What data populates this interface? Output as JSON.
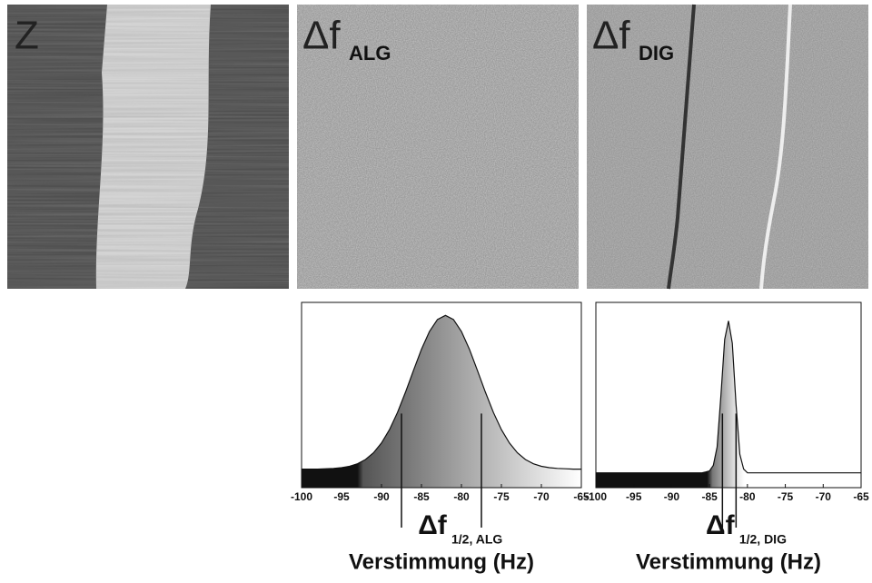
{
  "panels": [
    {
      "label": "Z"
    },
    {
      "label": "Δf",
      "subscript": "ALG"
    },
    {
      "label": "Δf",
      "subscript": "DIG"
    }
  ],
  "chart_data": [
    {
      "type": "area",
      "x": [
        -100,
        -99,
        -98,
        -97,
        -96,
        -95,
        -94,
        -93,
        -92,
        -91,
        -90,
        -89,
        -88,
        -87,
        -86,
        -85,
        -84,
        -83,
        -82,
        -81,
        -80,
        -79,
        -78,
        -77,
        -76,
        -75,
        -74,
        -73,
        -72,
        -71,
        -70,
        -69,
        -68,
        -67,
        -66,
        -65
      ],
      "values": [
        10,
        10,
        10,
        10.2,
        10.4,
        10.8,
        11.5,
        12.9,
        15.2,
        18.8,
        24.1,
        31.3,
        40.6,
        51.5,
        63.3,
        74.7,
        84.3,
        90.8,
        93,
        90.8,
        84.3,
        74.7,
        63.3,
        51.5,
        40.6,
        31.3,
        24.1,
        18.8,
        15.2,
        12.9,
        11.5,
        10.8,
        10.4,
        10.2,
        10,
        10
      ],
      "xlim": [
        -100,
        -65
      ],
      "ylim": [
        0,
        100
      ],
      "xticks": [
        -100,
        -95,
        -90,
        -85,
        -80,
        -75,
        -70,
        -65
      ],
      "markers": [
        -87.5,
        -77.5
      ],
      "annotation": {
        "text": "Δf",
        "subscript": "1/2, ALG"
      },
      "xlabel": "Verstimmung (Hz)"
    },
    {
      "type": "area",
      "x": [
        -100,
        -99.5,
        -99,
        -98.5,
        -98,
        -97.5,
        -97,
        -96.5,
        -96,
        -95.5,
        -95,
        -94.5,
        -94,
        -93.5,
        -93,
        -92.5,
        -92,
        -91.5,
        -91,
        -90.5,
        -90,
        -89.5,
        -89,
        -88.5,
        -88,
        -87.5,
        -87,
        -86.5,
        -86,
        -85.5,
        -85,
        -84.5,
        -84,
        -83.5,
        -83,
        -82.5,
        -82,
        -81.5,
        -81,
        -80.5,
        -80,
        -79.5,
        -79,
        -78.5,
        -78,
        -77.5,
        -77,
        -76.5,
        -76,
        -75.5,
        -75,
        -74.5,
        -74,
        -73.5,
        -73,
        -72.5,
        -72,
        -71.5,
        -71,
        -70.5,
        -70,
        -69.5,
        -69,
        -68.5,
        -68,
        -67.5,
        -67,
        -66.5,
        -66,
        -65.5,
        -65
      ],
      "values": [
        8,
        8,
        8,
        8,
        8,
        8,
        8,
        8,
        8,
        8,
        8,
        8,
        8,
        8,
        8,
        8,
        8,
        8,
        8,
        8,
        8,
        8,
        8,
        8,
        8,
        8,
        8,
        8,
        8,
        8.5,
        9,
        12,
        22,
        50,
        80,
        90,
        78,
        45,
        18,
        10,
        8,
        8,
        8,
        8,
        8,
        8,
        8,
        8,
        8,
        8,
        8,
        8,
        8,
        8,
        8,
        8,
        8,
        8,
        8,
        8,
        8,
        8,
        8,
        8,
        8,
        8,
        8,
        8,
        8,
        8,
        8
      ],
      "xlim": [
        -100,
        -65
      ],
      "ylim": [
        0,
        100
      ],
      "xticks": [
        -100,
        -95,
        -90,
        -85,
        -80,
        -75,
        -70,
        -65
      ],
      "markers": [
        -83.3,
        -81.5
      ],
      "annotation": {
        "text": "Δf",
        "subscript": "1/2, DIG"
      },
      "xlabel": "Verstimmung (Hz)"
    }
  ]
}
